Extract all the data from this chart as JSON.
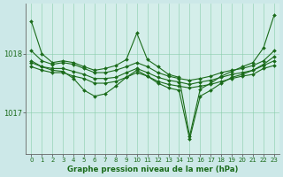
{
  "xlabel": "Graphe pression niveau de la mer (hPa)",
  "line_color": "#1a6b1a",
  "bg_color": "#cce8e8",
  "plot_bg": "#d4eeea",
  "ylim": [
    1016.3,
    1018.85
  ],
  "xlim": [
    -0.5,
    23.5
  ],
  "yticks": [
    1017,
    1018
  ],
  "xticks": [
    0,
    1,
    2,
    3,
    4,
    5,
    6,
    7,
    8,
    9,
    10,
    11,
    12,
    13,
    14,
    15,
    16,
    17,
    18,
    19,
    20,
    21,
    22,
    23
  ],
  "series": [
    {
      "x": [
        0,
        1,
        2,
        3,
        4,
        5,
        6,
        7,
        8,
        9,
        10,
        11,
        12,
        13,
        14,
        15,
        16,
        17,
        18,
        19,
        20,
        21,
        22,
        23
      ],
      "y": [
        1018.55,
        1018.0,
        1017.85,
        1017.88,
        1017.85,
        1017.78,
        1017.72,
        1017.75,
        1017.8,
        1017.9,
        1018.35,
        1017.9,
        1017.78,
        1017.65,
        1017.6,
        1016.6,
        1017.4,
        1017.5,
        1017.62,
        1017.7,
        1017.78,
        1017.85,
        1018.1,
        1018.65
      ]
    },
    {
      "x": [
        0,
        1,
        2,
        3,
        4,
        5,
        6,
        7,
        8,
        9,
        10,
        11,
        12,
        13,
        14,
        15,
        16,
        17,
        18,
        19,
        20,
        21,
        22,
        23
      ],
      "y": [
        1018.05,
        1017.88,
        1017.82,
        1017.85,
        1017.82,
        1017.75,
        1017.68,
        1017.68,
        1017.72,
        1017.78,
        1017.85,
        1017.78,
        1017.68,
        1017.62,
        1017.58,
        1017.55,
        1017.58,
        1017.62,
        1017.68,
        1017.72,
        1017.75,
        1017.8,
        1017.88,
        1018.05
      ]
    },
    {
      "x": [
        0,
        1,
        2,
        3,
        4,
        5,
        6,
        7,
        8,
        9,
        10,
        11,
        12,
        13,
        14,
        15,
        16,
        17,
        18,
        19,
        20,
        21,
        22,
        23
      ],
      "y": [
        1017.88,
        1017.78,
        1017.75,
        1017.75,
        1017.7,
        1017.65,
        1017.58,
        1017.58,
        1017.6,
        1017.68,
        1017.75,
        1017.68,
        1017.6,
        1017.55,
        1017.52,
        1017.48,
        1017.52,
        1017.55,
        1017.6,
        1017.65,
        1017.68,
        1017.72,
        1017.8,
        1017.88
      ]
    },
    {
      "x": [
        0,
        1,
        2,
        3,
        4,
        5,
        6,
        7,
        8,
        9,
        10,
        11,
        12,
        13,
        14,
        15,
        16,
        17,
        18,
        19,
        20,
        21,
        22,
        23
      ],
      "y": [
        1017.78,
        1017.72,
        1017.68,
        1017.68,
        1017.62,
        1017.58,
        1017.5,
        1017.5,
        1017.53,
        1017.6,
        1017.68,
        1017.62,
        1017.53,
        1017.48,
        1017.45,
        1017.42,
        1017.45,
        1017.48,
        1017.53,
        1017.58,
        1017.62,
        1017.65,
        1017.75,
        1017.8
      ]
    },
    {
      "x": [
        0,
        1,
        2,
        3,
        4,
        5,
        6,
        7,
        8,
        9,
        10,
        11,
        12,
        13,
        14,
        15,
        16,
        17,
        18,
        19,
        20,
        21,
        22,
        23
      ],
      "y": [
        1017.85,
        1017.78,
        1017.72,
        1017.7,
        1017.58,
        1017.38,
        1017.28,
        1017.32,
        1017.45,
        1017.6,
        1017.72,
        1017.62,
        1017.5,
        1017.42,
        1017.38,
        1016.55,
        1017.28,
        1017.38,
        1017.5,
        1017.6,
        1017.65,
        1017.72,
        1017.82,
        1017.95
      ]
    }
  ]
}
